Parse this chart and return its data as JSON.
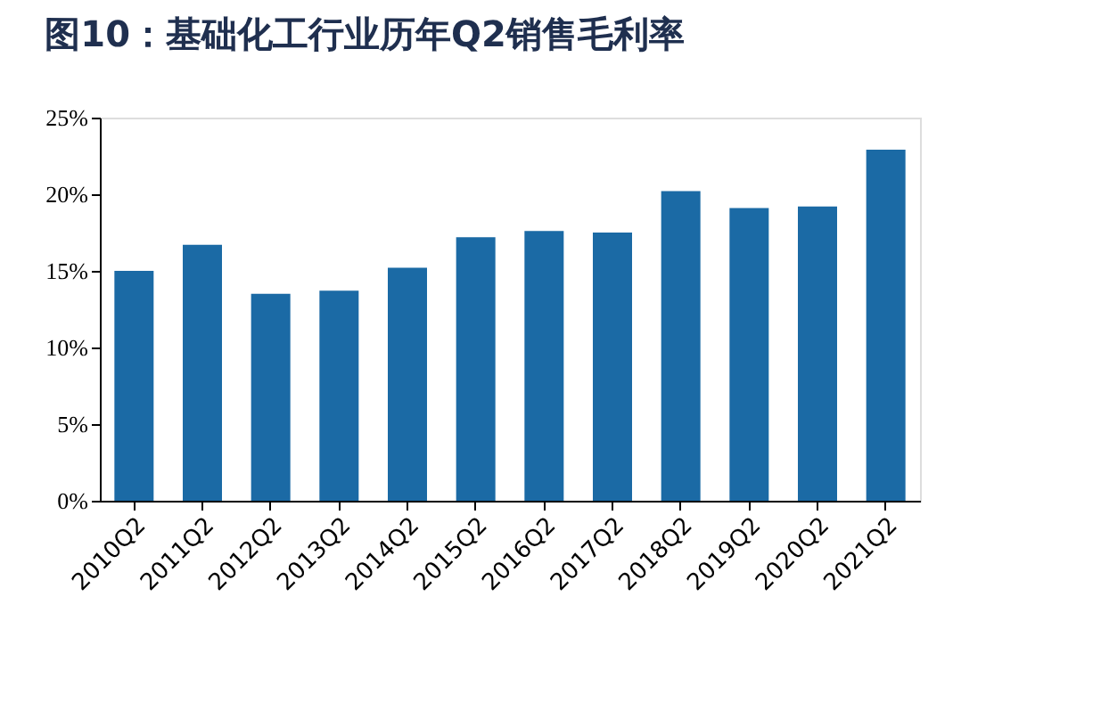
{
  "chart_data": {
    "type": "bar",
    "title": "图10：基础化工行业历年Q2销售毛利率",
    "categories": [
      "2010Q2",
      "2011Q2",
      "2012Q2",
      "2013Q2",
      "2014Q2",
      "2015Q2",
      "2016Q2",
      "2017Q2",
      "2018Q2",
      "2019Q2",
      "2020Q2",
      "2021Q2"
    ],
    "values": [
      15.0,
      16.7,
      13.5,
      13.7,
      15.2,
      17.2,
      17.6,
      17.5,
      20.2,
      19.1,
      19.2,
      22.9
    ],
    "color": "#1b6aa5",
    "ylim": [
      0,
      25
    ],
    "yticks": [
      {
        "value": 0,
        "label": "0%"
      },
      {
        "value": 5,
        "label": "5%"
      },
      {
        "value": 10,
        "label": "10%"
      },
      {
        "value": 15,
        "label": "15%"
      },
      {
        "value": 20,
        "label": "20%"
      },
      {
        "value": 25,
        "label": "25%"
      }
    ],
    "grid": false
  }
}
